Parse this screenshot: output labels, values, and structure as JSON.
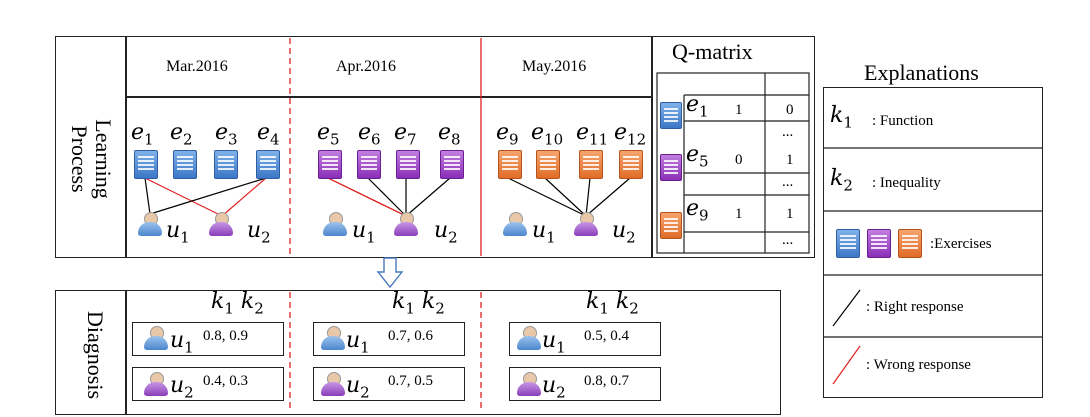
{
  "learning_panel": {
    "side_label": "Learning Process",
    "months": [
      "Mar.2016",
      "Apr.2016",
      "May.2016"
    ],
    "exercise_labels": [
      [
        "e",
        "1"
      ],
      [
        "e",
        "2"
      ],
      [
        "e",
        "3"
      ],
      [
        "e",
        "4"
      ],
      [
        "e",
        "5"
      ],
      [
        "e",
        "6"
      ],
      [
        "e",
        "7"
      ],
      [
        "e",
        "8"
      ],
      [
        "e",
        "9"
      ],
      [
        "e",
        "10"
      ],
      [
        "e",
        "11"
      ],
      [
        "e",
        "12"
      ]
    ],
    "users": [
      [
        "u",
        "1"
      ],
      [
        "u",
        "2"
      ]
    ]
  },
  "q_matrix": {
    "title": "Q-matrix",
    "rows": [
      {
        "e": "e",
        "sub": "1",
        "k1": "1",
        "k2": "0"
      },
      {
        "e": "e",
        "sub": "5",
        "k1": "0",
        "k2": "1"
      },
      {
        "e": "e",
        "sub": "9",
        "k1": "1",
        "k2": "1"
      }
    ],
    "ellipsis": "..."
  },
  "diagnosis": {
    "side_label": "Diagnosis",
    "k_header": [
      "k",
      "1",
      "k",
      "2"
    ],
    "months": [
      {
        "u1": "0.8,  0.9",
        "u2": "0.4,  0.3"
      },
      {
        "u1": "0.7,  0.6",
        "u2": "0.7,  0.5"
      },
      {
        "u1": "0.5,  0.4",
        "u2": "0.8,  0.7"
      }
    ]
  },
  "explanations": {
    "title": "Explanations",
    "k1_text": ": Function",
    "k2_text": ": Inequality",
    "exercises_text": ":Exercises",
    "right_text": ":  Right response",
    "wrong_text": ":  Wrong response"
  },
  "colors": {
    "right_line": "#000000",
    "wrong_line": "#e02020",
    "divider": "#e02020",
    "arrow": "#4a78c0"
  }
}
